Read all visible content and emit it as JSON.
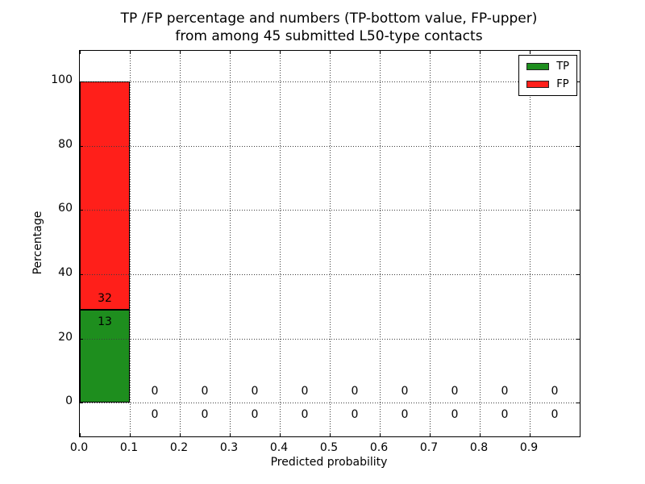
{
  "figure": {
    "background": "#ffffff",
    "text_color": "#000000"
  },
  "chart_data": {
    "type": "bar",
    "stacked": true,
    "title_line1": "TP /FP percentage and numbers (TP-bottom value, FP-upper)",
    "title_line2": "from among 45 submitted L50-type contacts",
    "title": "TP /FP percentage and numbers (TP-bottom value, FP-upper)\nfrom among 45 submitted L50-type contacts",
    "xlabel": "Predicted probability",
    "ylabel": "Percentage",
    "total_contacts": 45,
    "bins": [
      0.0,
      0.1,
      0.2,
      0.3,
      0.4,
      0.5,
      0.6,
      0.7,
      0.8,
      0.9
    ],
    "bin_width": 0.1,
    "series": [
      {
        "name": "TP",
        "color": "#1e8e1e",
        "counts": [
          13,
          0,
          0,
          0,
          0,
          0,
          0,
          0,
          0,
          0
        ],
        "percentages": [
          28.89,
          0,
          0,
          0,
          0,
          0,
          0,
          0,
          0,
          0
        ]
      },
      {
        "name": "FP",
        "color": "#ff1f1a",
        "counts": [
          32,
          0,
          0,
          0,
          0,
          0,
          0,
          0,
          0,
          0
        ],
        "percentages": [
          71.11,
          0,
          0,
          0,
          0,
          0,
          0,
          0,
          0,
          0
        ]
      }
    ],
    "xticks": [
      "0.0",
      "0.1",
      "0.2",
      "0.3",
      "0.4",
      "0.5",
      "0.6",
      "0.7",
      "0.8",
      "0.9"
    ],
    "yticks": [
      0,
      20,
      40,
      60,
      80,
      100
    ],
    "xlim": [
      0.0,
      1.0
    ],
    "ylim": [
      -10.5,
      109.5
    ],
    "grid": "dotted",
    "legend": {
      "position": "upper right",
      "entries": [
        {
          "label": "TP",
          "color": "#1e8e1e"
        },
        {
          "label": "FP",
          "color": "#ff1f1a"
        }
      ]
    }
  }
}
